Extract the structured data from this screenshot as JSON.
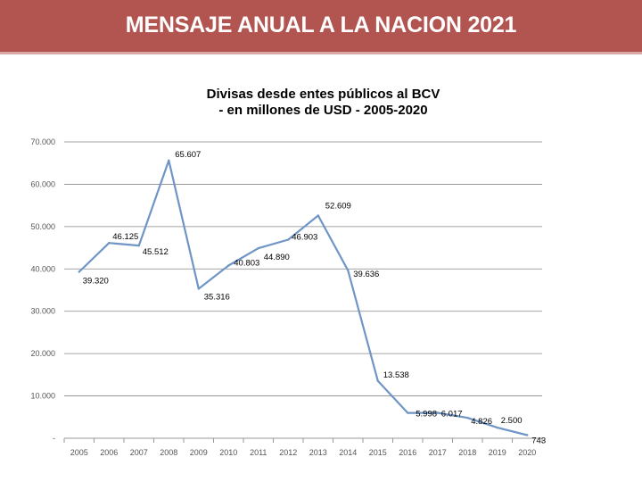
{
  "header": {
    "title": "MENSAJE ANUAL A LA NACION 2021"
  },
  "colors": {
    "header_bg": "#b25450",
    "line": "#6f95c6",
    "grid": "#888888"
  },
  "chart_data": {
    "type": "line",
    "title": "Divisas desde entes públicos al BCV",
    "subtitle": "- en millones de USD - 2005-2020",
    "categories": [
      "2005",
      "2006",
      "2007",
      "2008",
      "2009",
      "2010",
      "2011",
      "2012",
      "2013",
      "2014",
      "2015",
      "2016",
      "2017",
      "2018",
      "2019",
      "2020"
    ],
    "values": [
      39320,
      46125,
      45512,
      65607,
      35316,
      40803,
      44890,
      46903,
      52609,
      39636,
      13538,
      5998,
      6017,
      4826,
      2500,
      743
    ],
    "data_labels": [
      "39.320",
      "46.125",
      "45.512",
      "65.607",
      "35.316",
      "40.803",
      "44.890",
      "46.903",
      "52.609",
      "39.636",
      "13.538",
      "5.998",
      "6.017",
      "4.826",
      "2.500",
      "743"
    ],
    "ylim": [
      0,
      70000
    ],
    "y_ticks": [
      0,
      10000,
      20000,
      30000,
      40000,
      50000,
      60000,
      70000
    ],
    "y_tick_labels": [
      "-",
      "10.000",
      "20.000",
      "30.000",
      "40.000",
      "50.000",
      "60.000",
      "70.000"
    ],
    "grid": true,
    "legend": "none",
    "xlabel": "",
    "ylabel": ""
  }
}
